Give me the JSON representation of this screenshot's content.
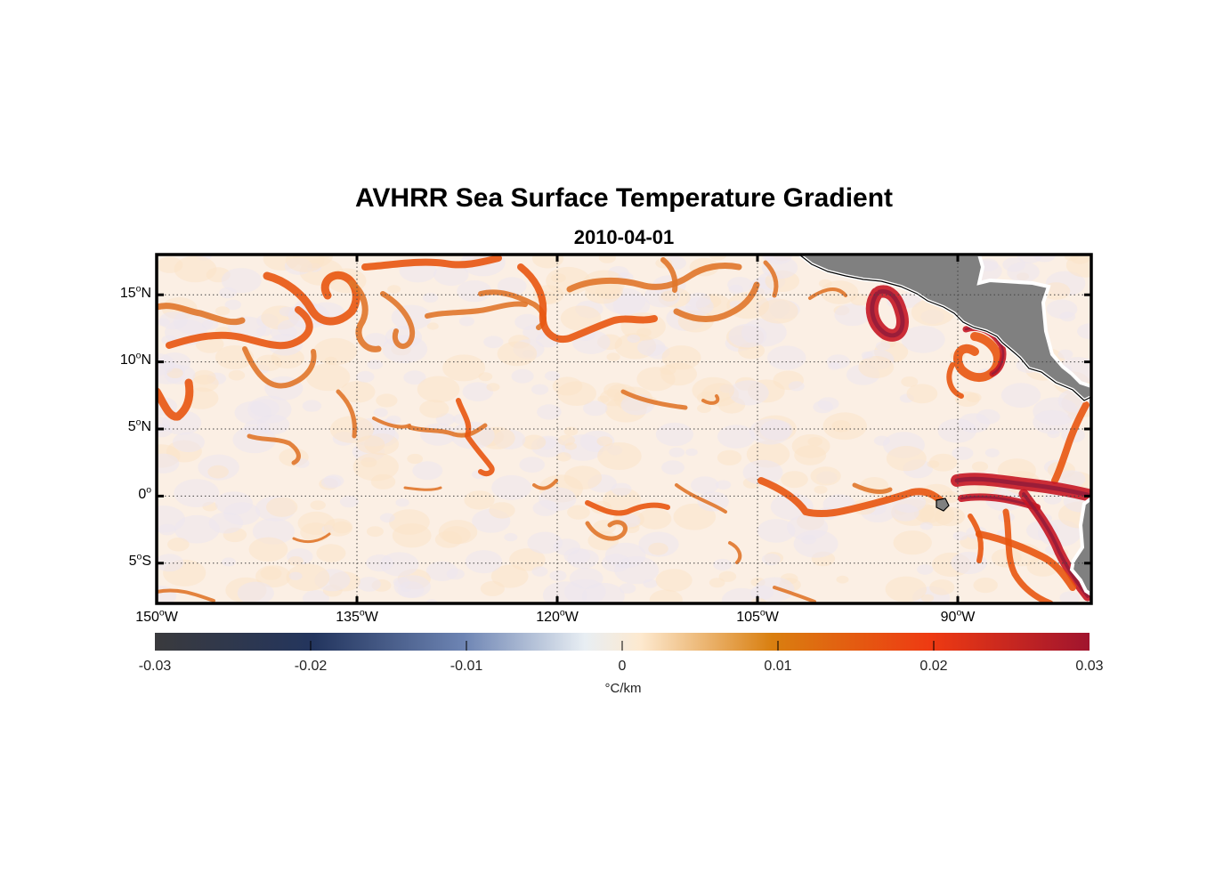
{
  "title": "AVHRR Sea Surface Temperature Gradient",
  "date": "2010-04-01",
  "lat_labels": [
    {
      "value": 15,
      "deg": "15",
      "hemi": "N"
    },
    {
      "value": 10,
      "deg": "10",
      "hemi": "N"
    },
    {
      "value": 5,
      "deg": "5",
      "hemi": "N"
    },
    {
      "value": 0,
      "deg": "0",
      "hemi": ""
    },
    {
      "value": -5,
      "deg": "5",
      "hemi": "S"
    }
  ],
  "lon_labels": [
    {
      "value": -150,
      "deg": "150",
      "hemi": "W"
    },
    {
      "value": -135,
      "deg": "135",
      "hemi": "W"
    },
    {
      "value": -120,
      "deg": "120",
      "hemi": "W"
    },
    {
      "value": -105,
      "deg": "105",
      "hemi": "W"
    },
    {
      "value": -90,
      "deg": "90",
      "hemi": "W"
    }
  ],
  "colorbar": {
    "ticks": [
      "-0.03",
      "-0.02",
      "-0.01",
      "0",
      "0.01",
      "0.02",
      "0.03"
    ],
    "unit": "°C/km",
    "colors": [
      "#3a3a3d",
      "#23355e",
      "#6d84b3",
      "#e8eef3",
      "#fde9cf",
      "#d97f10",
      "#ee3a12",
      "#a0142e"
    ]
  },
  "map_extent": {
    "lon": [
      -150,
      -80
    ],
    "lat": [
      -8,
      18
    ]
  },
  "colors": {
    "land": "#808080",
    "ocean_base": "#fbefe4",
    "front_weak": "#e0762a",
    "front_mid": "#e8550f",
    "front_strong": "#c51623"
  }
}
